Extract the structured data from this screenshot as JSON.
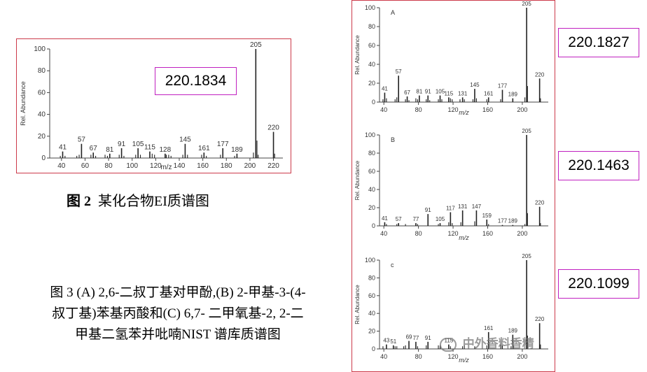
{
  "figure2": {
    "value_label": "220.1834",
    "caption_number": "图 2",
    "caption_text": "某化合物EI质谱图"
  },
  "figure3": {
    "caption_lines": [
      "图 3  (A) 2,6-二叔丁基对甲酚,(B) 2-甲基-3-(4-",
      "叔丁基)苯基丙酸和(C) 6,7- 二甲氧基-2, 2-二",
      "甲基二氢苯并吡喃NIST 谱库质谱图"
    ],
    "value_labels": [
      "220.1827",
      "220.1463",
      "220.1099"
    ]
  },
  "watermark": "中外香料香精",
  "colors": {
    "frame": "#cc3a4a",
    "value_box": "#c020c0",
    "bar": "#222222"
  },
  "chart_data": [
    {
      "type": "bar",
      "panel": "",
      "ylabel": "Rel. Abundance",
      "xlabel": "m/z",
      "xlim": [
        30,
        228
      ],
      "ylim": [
        0,
        100
      ],
      "xticks": [
        40,
        60,
        80,
        100,
        120,
        140,
        160,
        180,
        200,
        220
      ],
      "yticks": [
        0,
        20,
        40,
        60,
        80,
        100
      ],
      "labeled_peaks": [
        {
          "x": 41,
          "y": 6
        },
        {
          "x": 57,
          "y": 13
        },
        {
          "x": 67,
          "y": 5
        },
        {
          "x": 81,
          "y": 4
        },
        {
          "x": 91,
          "y": 9
        },
        {
          "x": 105,
          "y": 9
        },
        {
          "x": 115,
          "y": 6
        },
        {
          "x": 128,
          "y": 4
        },
        {
          "x": 145,
          "y": 13
        },
        {
          "x": 161,
          "y": 5
        },
        {
          "x": 177,
          "y": 9
        },
        {
          "x": 189,
          "y": 4
        },
        {
          "x": 205,
          "y": 100
        },
        {
          "x": 220,
          "y": 24
        }
      ],
      "minor_peaks": [
        {
          "x": 39,
          "y": 2
        },
        {
          "x": 43,
          "y": 2
        },
        {
          "x": 53,
          "y": 2
        },
        {
          "x": 55,
          "y": 3
        },
        {
          "x": 65,
          "y": 3
        },
        {
          "x": 69,
          "y": 2
        },
        {
          "x": 77,
          "y": 3
        },
        {
          "x": 79,
          "y": 2
        },
        {
          "x": 89,
          "y": 3
        },
        {
          "x": 93,
          "y": 2
        },
        {
          "x": 103,
          "y": 3
        },
        {
          "x": 107,
          "y": 3
        },
        {
          "x": 117,
          "y": 4
        },
        {
          "x": 119,
          "y": 3
        },
        {
          "x": 129,
          "y": 3
        },
        {
          "x": 131,
          "y": 3
        },
        {
          "x": 133,
          "y": 2
        },
        {
          "x": 143,
          "y": 3
        },
        {
          "x": 147,
          "y": 3
        },
        {
          "x": 159,
          "y": 3
        },
        {
          "x": 163,
          "y": 2
        },
        {
          "x": 175,
          "y": 3
        },
        {
          "x": 187,
          "y": 2
        },
        {
          "x": 203,
          "y": 5
        },
        {
          "x": 206,
          "y": 16
        },
        {
          "x": 207,
          "y": 3
        },
        {
          "x": 221,
          "y": 4
        }
      ]
    },
    {
      "type": "bar",
      "panel": "A",
      "ylabel": "Rel. Abundance",
      "xlabel": "m/z",
      "xlim": [
        35,
        230
      ],
      "ylim": [
        0,
        100
      ],
      "xticks": [
        40,
        80,
        120,
        160,
        200
      ],
      "yticks": [
        0,
        20,
        40,
        60,
        80,
        100
      ],
      "labeled_peaks": [
        {
          "x": 41,
          "y": 10
        },
        {
          "x": 57,
          "y": 28
        },
        {
          "x": 67,
          "y": 6
        },
        {
          "x": 81,
          "y": 7
        },
        {
          "x": 91,
          "y": 7
        },
        {
          "x": 105,
          "y": 7
        },
        {
          "x": 115,
          "y": 5
        },
        {
          "x": 131,
          "y": 5
        },
        {
          "x": 145,
          "y": 14
        },
        {
          "x": 161,
          "y": 5
        },
        {
          "x": 177,
          "y": 13
        },
        {
          "x": 189,
          "y": 4
        },
        {
          "x": 205,
          "y": 100
        },
        {
          "x": 220,
          "y": 25
        }
      ],
      "minor_peaks": [
        {
          "x": 39,
          "y": 3
        },
        {
          "x": 43,
          "y": 4
        },
        {
          "x": 53,
          "y": 3
        },
        {
          "x": 55,
          "y": 5
        },
        {
          "x": 65,
          "y": 3
        },
        {
          "x": 69,
          "y": 2
        },
        {
          "x": 77,
          "y": 4
        },
        {
          "x": 79,
          "y": 3
        },
        {
          "x": 89,
          "y": 3
        },
        {
          "x": 93,
          "y": 2
        },
        {
          "x": 103,
          "y": 3
        },
        {
          "x": 107,
          "y": 3
        },
        {
          "x": 117,
          "y": 4
        },
        {
          "x": 119,
          "y": 3
        },
        {
          "x": 128,
          "y": 3
        },
        {
          "x": 133,
          "y": 3
        },
        {
          "x": 143,
          "y": 3
        },
        {
          "x": 147,
          "y": 4
        },
        {
          "x": 159,
          "y": 3
        },
        {
          "x": 175,
          "y": 3
        },
        {
          "x": 203,
          "y": 5
        },
        {
          "x": 206,
          "y": 17
        },
        {
          "x": 221,
          "y": 4
        }
      ]
    },
    {
      "type": "bar",
      "panel": "B",
      "ylabel": "Rel. Abundance",
      "xlabel": "m/z",
      "xlim": [
        35,
        230
      ],
      "ylim": [
        0,
        100
      ],
      "xticks": [
        40,
        80,
        120,
        160,
        200
      ],
      "yticks": [
        0,
        20,
        40,
        60,
        80,
        100
      ],
      "labeled_peaks": [
        {
          "x": 41,
          "y": 4
        },
        {
          "x": 57,
          "y": 3
        },
        {
          "x": 77,
          "y": 3
        },
        {
          "x": 91,
          "y": 13
        },
        {
          "x": 105,
          "y": 3
        },
        {
          "x": 117,
          "y": 15
        },
        {
          "x": 131,
          "y": 17
        },
        {
          "x": 147,
          "y": 17
        },
        {
          "x": 159,
          "y": 7
        },
        {
          "x": 177,
          "y": 1
        },
        {
          "x": 189,
          "y": 1
        },
        {
          "x": 205,
          "y": 100
        },
        {
          "x": 220,
          "y": 21
        }
      ],
      "minor_peaks": [
        {
          "x": 43,
          "y": 2
        },
        {
          "x": 55,
          "y": 2
        },
        {
          "x": 65,
          "y": 2
        },
        {
          "x": 79,
          "y": 2
        },
        {
          "x": 103,
          "y": 2
        },
        {
          "x": 115,
          "y": 4
        },
        {
          "x": 119,
          "y": 3
        },
        {
          "x": 129,
          "y": 4
        },
        {
          "x": 145,
          "y": 5
        },
        {
          "x": 161,
          "y": 2
        },
        {
          "x": 203,
          "y": 2
        },
        {
          "x": 206,
          "y": 14
        },
        {
          "x": 221,
          "y": 3
        }
      ]
    },
    {
      "type": "bar",
      "panel": "c",
      "ylabel": "Rel. Abundance",
      "xlabel": "m/z",
      "xlim": [
        35,
        230
      ],
      "ylim": [
        0,
        100
      ],
      "xticks": [
        40,
        80,
        120,
        160,
        200
      ],
      "yticks": [
        0,
        20,
        40,
        60,
        80,
        100
      ],
      "labeled_peaks": [
        {
          "x": 43,
          "y": 5
        },
        {
          "x": 51,
          "y": 4
        },
        {
          "x": 69,
          "y": 9
        },
        {
          "x": 77,
          "y": 8
        },
        {
          "x": 91,
          "y": 8
        },
        {
          "x": 115,
          "y": 5
        },
        {
          "x": 161,
          "y": 19
        },
        {
          "x": 189,
          "y": 16
        },
        {
          "x": 205,
          "y": 100
        },
        {
          "x": 220,
          "y": 29
        }
      ],
      "minor_peaks": [
        {
          "x": 39,
          "y": 3
        },
        {
          "x": 53,
          "y": 3
        },
        {
          "x": 55,
          "y": 3
        },
        {
          "x": 63,
          "y": 3
        },
        {
          "x": 65,
          "y": 4
        },
        {
          "x": 79,
          "y": 3
        },
        {
          "x": 89,
          "y": 4
        },
        {
          "x": 103,
          "y": 4
        },
        {
          "x": 105,
          "y": 4
        },
        {
          "x": 117,
          "y": 3
        },
        {
          "x": 131,
          "y": 3
        },
        {
          "x": 133,
          "y": 4
        },
        {
          "x": 145,
          "y": 3
        },
        {
          "x": 159,
          "y": 4
        },
        {
          "x": 175,
          "y": 5
        },
        {
          "x": 177,
          "y": 4
        },
        {
          "x": 187,
          "y": 3
        },
        {
          "x": 190,
          "y": 4
        },
        {
          "x": 206,
          "y": 15
        },
        {
          "x": 221,
          "y": 5
        }
      ]
    }
  ]
}
